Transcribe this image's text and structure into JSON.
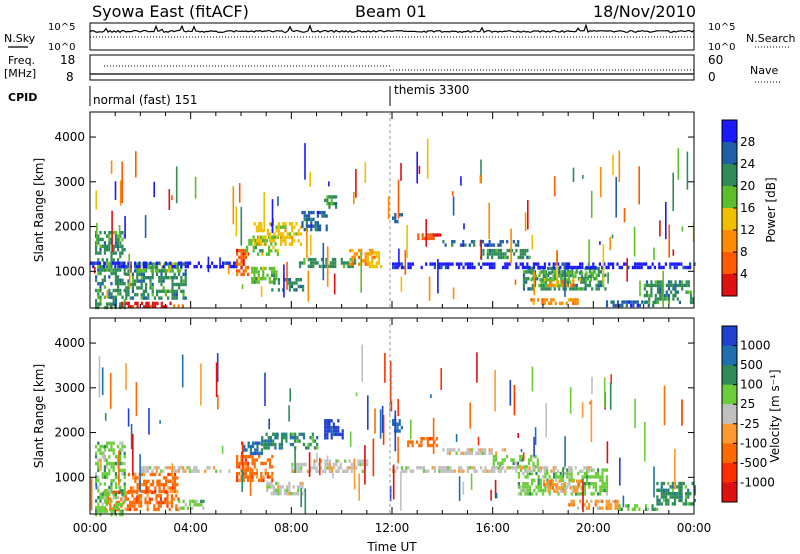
{
  "header": {
    "station": "Syowa East (fitACF)",
    "beam": "Beam 01",
    "date": "18/Nov/2010"
  },
  "params_panel": {
    "nsky_label": "N.Sky",
    "nsky_ticks": [
      "10^5",
      "10^0"
    ],
    "nsearch_label": "N.Search",
    "nsearch_ticks": [
      "10^5",
      "10^0"
    ],
    "freq_label": "Freq.",
    "freq_unit": "[MHz]",
    "freq_ticks": [
      "18",
      "8"
    ],
    "nave_label": "Nave",
    "nave_ticks": [
      "60",
      "0"
    ],
    "cpid_label": "CPID",
    "cpid_segments": [
      {
        "label": "normal (fast) 151",
        "start_hour": 0
      },
      {
        "label": "themis 3300",
        "start_hour": 12
      }
    ]
  },
  "x_axis": {
    "label": "Time UT",
    "ticks": [
      "00:00",
      "04:00",
      "08:00",
      "12:00",
      "16:00",
      "20:00",
      "00:00"
    ],
    "range_hours": [
      0,
      24
    ]
  },
  "colors": {
    "power": [
      "#1a1aff",
      "#1f5fa8",
      "#2e8b57",
      "#5cbf2a",
      "#f0c000",
      "#ff8c00",
      "#ff5a00",
      "#e01010"
    ],
    "velocity": [
      "#2040d0",
      "#1f6fb0",
      "#2e8b57",
      "#6acd3a",
      "#c0c0c0",
      "#ff9a30",
      "#ff6a00",
      "#ff3000",
      "#e01010"
    ]
  },
  "chart_data": [
    {
      "type": "heatmap",
      "title": "Power",
      "ylabel": "Slant Range [km]",
      "xlabel": "",
      "ylim": [
        180,
        4560
      ],
      "yticks": [
        "1000",
        "2000",
        "3000",
        "4000"
      ],
      "colorbar_label": "Power [dB]",
      "colorbar_ticks": [
        "28",
        "24",
        "20",
        "16",
        "12",
        "8",
        "4"
      ],
      "regions": [
        {
          "t0": 0.8,
          "t1": 3.2,
          "r0": 200,
          "r1": 320,
          "level": 7
        },
        {
          "t0": 3.3,
          "t1": 4.0,
          "r0": 200,
          "r1": 260,
          "level": 5
        },
        {
          "t0": 0.2,
          "t1": 1.4,
          "r0": 200,
          "r1": 1900,
          "level": 2
        },
        {
          "t0": 1.4,
          "t1": 3.8,
          "r0": 400,
          "r1": 1200,
          "level": 2
        },
        {
          "t0": 1.7,
          "t1": 3.6,
          "r0": 1000,
          "r1": 1200,
          "level": 3
        },
        {
          "t0": 0.0,
          "t1": 5.8,
          "r0": 1100,
          "r1": 1220,
          "level": 0
        },
        {
          "t0": 5.8,
          "t1": 6.3,
          "r0": 900,
          "r1": 1500,
          "level": 6
        },
        {
          "t0": 6.2,
          "t1": 7.5,
          "r0": 1400,
          "r1": 1800,
          "level": 3
        },
        {
          "t0": 6.5,
          "t1": 8.4,
          "r0": 1600,
          "r1": 2100,
          "level": 4
        },
        {
          "t0": 6.4,
          "t1": 7.4,
          "r0": 750,
          "r1": 1100,
          "level": 3
        },
        {
          "t0": 7.2,
          "t1": 8.5,
          "r0": 600,
          "r1": 850,
          "level": 2
        },
        {
          "t0": 8.4,
          "t1": 9.4,
          "r0": 1900,
          "r1": 2350,
          "level": 1
        },
        {
          "t0": 9.3,
          "t1": 9.8,
          "r0": 2400,
          "r1": 2700,
          "level": 2
        },
        {
          "t0": 8.3,
          "t1": 10.5,
          "r0": 1100,
          "r1": 1300,
          "level": 2
        },
        {
          "t0": 10.3,
          "t1": 11.3,
          "r0": 1150,
          "r1": 1500,
          "level": 5
        },
        {
          "t0": 11.0,
          "t1": 11.6,
          "r0": 1100,
          "r1": 1450,
          "level": 4
        },
        {
          "t0": 12.0,
          "t1": 12.4,
          "r0": 2100,
          "r1": 2300,
          "level": 1
        },
        {
          "t0": 13.0,
          "t1": 14.0,
          "r0": 1700,
          "r1": 1850,
          "level": 6
        },
        {
          "t0": 14.0,
          "t1": 17.0,
          "r0": 1550,
          "r1": 1700,
          "level": 1
        },
        {
          "t0": 15.5,
          "t1": 17.5,
          "r0": 1300,
          "r1": 1500,
          "level": 2
        },
        {
          "t0": 17.2,
          "t1": 20.5,
          "r0": 600,
          "r1": 1100,
          "level": 2
        },
        {
          "t0": 17.5,
          "t1": 20.0,
          "r0": 800,
          "r1": 1000,
          "level": 3
        },
        {
          "t0": 18.2,
          "t1": 19.2,
          "r0": 650,
          "r1": 800,
          "level": 5
        },
        {
          "t0": 17.5,
          "t1": 19.5,
          "r0": 250,
          "r1": 400,
          "level": 5
        },
        {
          "t0": 20.5,
          "t1": 22.5,
          "r0": 250,
          "r1": 350,
          "level": 1
        },
        {
          "t0": 22.0,
          "t1": 24.0,
          "r0": 300,
          "r1": 800,
          "level": 2
        },
        {
          "t0": 12.0,
          "t1": 24.0,
          "r0": 1100,
          "r1": 1200,
          "level": 0
        }
      ]
    },
    {
      "type": "heatmap",
      "title": "Velocity",
      "ylabel": "Slant Range [km]",
      "xlabel": "Time UT",
      "ylim": [
        180,
        4560
      ],
      "yticks": [
        "1000",
        "2000",
        "3000",
        "4000"
      ],
      "colorbar_label": "Velocity [m s⁻¹]",
      "colorbar_ticks": [
        "1000",
        "500",
        "100",
        "25",
        "-25",
        "-100",
        "-500",
        "-1000"
      ],
      "regions": [
        {
          "t0": 0.5,
          "t1": 3.5,
          "r0": 250,
          "r1": 700,
          "level": 6
        },
        {
          "t0": 1.5,
          "t1": 3.5,
          "r0": 700,
          "r1": 1100,
          "level": 6
        },
        {
          "t0": 0.2,
          "t1": 1.4,
          "r0": 200,
          "r1": 1800,
          "level": 3
        },
        {
          "t0": 2.0,
          "t1": 5.5,
          "r0": 1150,
          "r1": 1250,
          "level": 4
        },
        {
          "t0": 3.5,
          "t1": 4.5,
          "r0": 300,
          "r1": 500,
          "level": 3
        },
        {
          "t0": 5.8,
          "t1": 7.2,
          "r0": 900,
          "r1": 1500,
          "level": 6
        },
        {
          "t0": 6.0,
          "t1": 6.8,
          "r0": 1500,
          "r1": 1800,
          "level": 1
        },
        {
          "t0": 6.8,
          "t1": 9.0,
          "r0": 1650,
          "r1": 2000,
          "level": 2
        },
        {
          "t0": 7.0,
          "t1": 8.5,
          "r0": 600,
          "r1": 900,
          "level": 4
        },
        {
          "t0": 8.0,
          "t1": 11.0,
          "r0": 1150,
          "r1": 1400,
          "level": 4
        },
        {
          "t0": 9.3,
          "t1": 10.0,
          "r0": 1900,
          "r1": 2300,
          "level": 0
        },
        {
          "t0": 12.0,
          "t1": 12.4,
          "r0": 2050,
          "r1": 2300,
          "level": 1
        },
        {
          "t0": 12.6,
          "t1": 13.8,
          "r0": 1700,
          "r1": 1900,
          "level": 6
        },
        {
          "t0": 14.0,
          "t1": 16.5,
          "r0": 1500,
          "r1": 1650,
          "level": 4
        },
        {
          "t0": 16.0,
          "t1": 17.8,
          "r0": 1200,
          "r1": 1500,
          "level": 3
        },
        {
          "t0": 17.0,
          "t1": 20.5,
          "r0": 600,
          "r1": 1200,
          "level": 3
        },
        {
          "t0": 18.0,
          "t1": 19.5,
          "r0": 700,
          "r1": 950,
          "level": 5
        },
        {
          "t0": 19.0,
          "t1": 21.0,
          "r0": 300,
          "r1": 500,
          "level": 5
        },
        {
          "t0": 21.0,
          "t1": 22.5,
          "r0": 250,
          "r1": 400,
          "level": 3
        },
        {
          "t0": 22.5,
          "t1": 24.0,
          "r0": 400,
          "r1": 900,
          "level": 2
        },
        {
          "t0": 12.0,
          "t1": 20.0,
          "r0": 1150,
          "r1": 1250,
          "level": 4
        }
      ]
    }
  ]
}
